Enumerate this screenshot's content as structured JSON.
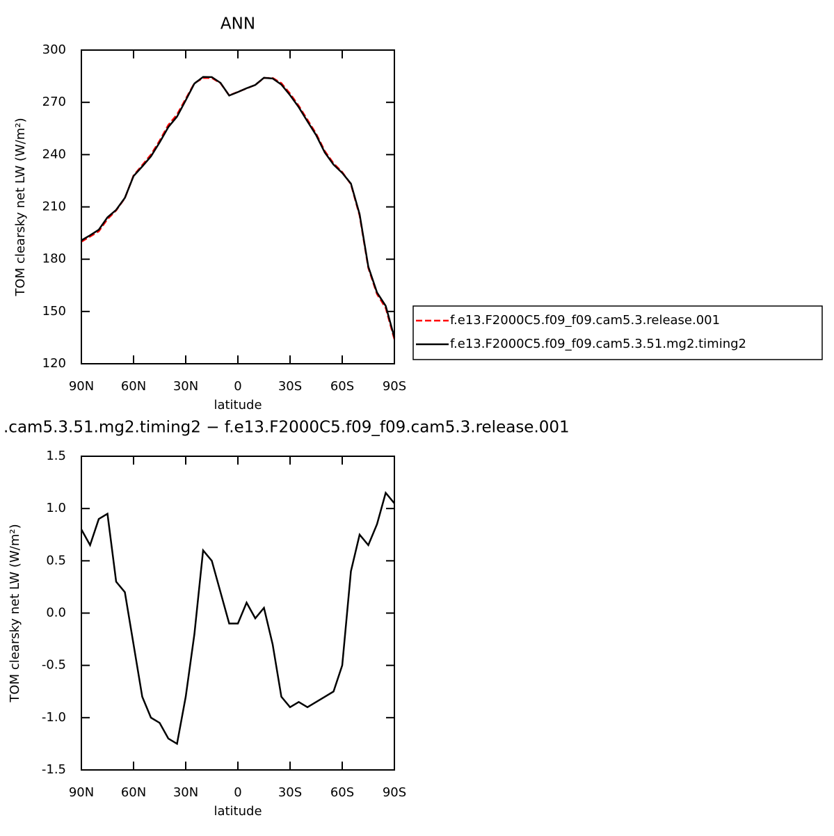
{
  "chart_data": [
    {
      "type": "line",
      "title": "ANN",
      "xlabel": "latitude",
      "ylabel": "TOM clearsky net LW (W/m²)",
      "x": [
        90,
        85,
        80,
        75,
        70,
        65,
        60,
        55,
        50,
        45,
        40,
        35,
        30,
        25,
        20,
        15,
        10,
        5,
        0,
        -5,
        -10,
        -15,
        -20,
        -25,
        -30,
        -35,
        -40,
        -45,
        -50,
        -55,
        -60,
        -65,
        -70,
        -75,
        -80,
        -85,
        -90
      ],
      "series": [
        {
          "name": "f.e13.F2000C5.f09_f09.cam5.3.release.001",
          "color": "#ff0000",
          "linestyle": "dashed",
          "values": [
            190,
            193,
            196,
            203,
            208,
            215,
            228,
            234,
            240,
            248,
            257,
            263,
            272,
            281,
            284,
            284,
            281,
            274,
            276,
            278,
            280,
            284,
            284,
            281,
            275,
            268,
            260,
            252,
            242,
            235,
            230,
            223,
            205,
            175,
            160,
            152,
            134
          ]
        },
        {
          "name": "f.e13.F2000C5.f09_f09.cam5.3.51.mg2.timing2",
          "color": "#000000",
          "linestyle": "solid",
          "values": [
            190.8,
            193.7,
            196.9,
            204,
            208.3,
            215.2,
            227.7,
            233.2,
            239,
            247,
            255.8,
            261.8,
            271.2,
            280.8,
            284.6,
            284.5,
            281.2,
            273.9,
            275.9,
            278.1,
            280,
            284.1,
            283.7,
            280.2,
            274.1,
            267.2,
            259.1,
            251.2,
            241.2,
            234.3,
            229.5,
            223.4,
            205.8,
            175.7,
            160.9,
            153.2,
            135.1
          ]
        }
      ],
      "xlim": [
        90,
        -90
      ],
      "xticks": [
        {
          "value": 90,
          "label": "90N"
        },
        {
          "value": 60,
          "label": "60N"
        },
        {
          "value": 30,
          "label": "30N"
        },
        0,
        {
          "value": -30,
          "label": "30S"
        },
        {
          "value": -60,
          "label": "60S"
        },
        {
          "value": -90,
          "label": "90S"
        }
      ],
      "ylim": [
        120,
        300
      ],
      "yticks": [
        120,
        150,
        180,
        210,
        240,
        270,
        300
      ],
      "legend": "outside right"
    },
    {
      "type": "line",
      "title": ".cam5.3.51.mg2.timing2 − f.e13.F2000C5.f09_f09.cam5.3.release.001",
      "xlabel": "latitude",
      "ylabel": "TOM clearsky net LW (W/m²)",
      "x": [
        90,
        85,
        80,
        75,
        70,
        65,
        60,
        55,
        50,
        45,
        40,
        35,
        30,
        25,
        20,
        15,
        10,
        5,
        0,
        -5,
        -10,
        -15,
        -20,
        -25,
        -30,
        -35,
        -40,
        -45,
        -50,
        -55,
        -60,
        -65,
        -70,
        -75,
        -80,
        -85,
        -90
      ],
      "series": [
        {
          "color": "#000000",
          "linestyle": "solid",
          "values": [
            0.8,
            0.65,
            0.9,
            0.95,
            0.3,
            0.2,
            -0.3,
            -0.8,
            -1.0,
            -1.05,
            -1.2,
            -1.25,
            -0.8,
            -0.2,
            0.6,
            0.5,
            0.2,
            -0.1,
            -0.1,
            0.1,
            -0.05,
            0.05,
            -0.3,
            -0.8,
            -0.9,
            -0.85,
            -0.9,
            -0.85,
            -0.8,
            -0.75,
            -0.5,
            0.4,
            0.75,
            0.65,
            0.85,
            1.15,
            1.05
          ]
        }
      ],
      "xlim": [
        90,
        -90
      ],
      "xticks": [
        {
          "value": 90,
          "label": "90N"
        },
        {
          "value": 60,
          "label": "60N"
        },
        {
          "value": 30,
          "label": "30N"
        },
        0,
        {
          "value": -30,
          "label": "30S"
        },
        {
          "value": -60,
          "label": "60S"
        },
        {
          "value": -90,
          "label": "90S"
        }
      ],
      "ylim": [
        -1.5,
        1.5
      ],
      "yticks": [
        -1.5,
        {
          "value": -1,
          "label": "-1.0"
        },
        -0.5,
        {
          "value": 0,
          "label": "0.0"
        },
        0.5,
        {
          "value": 1,
          "label": "1.0"
        },
        1.5
      ]
    }
  ]
}
